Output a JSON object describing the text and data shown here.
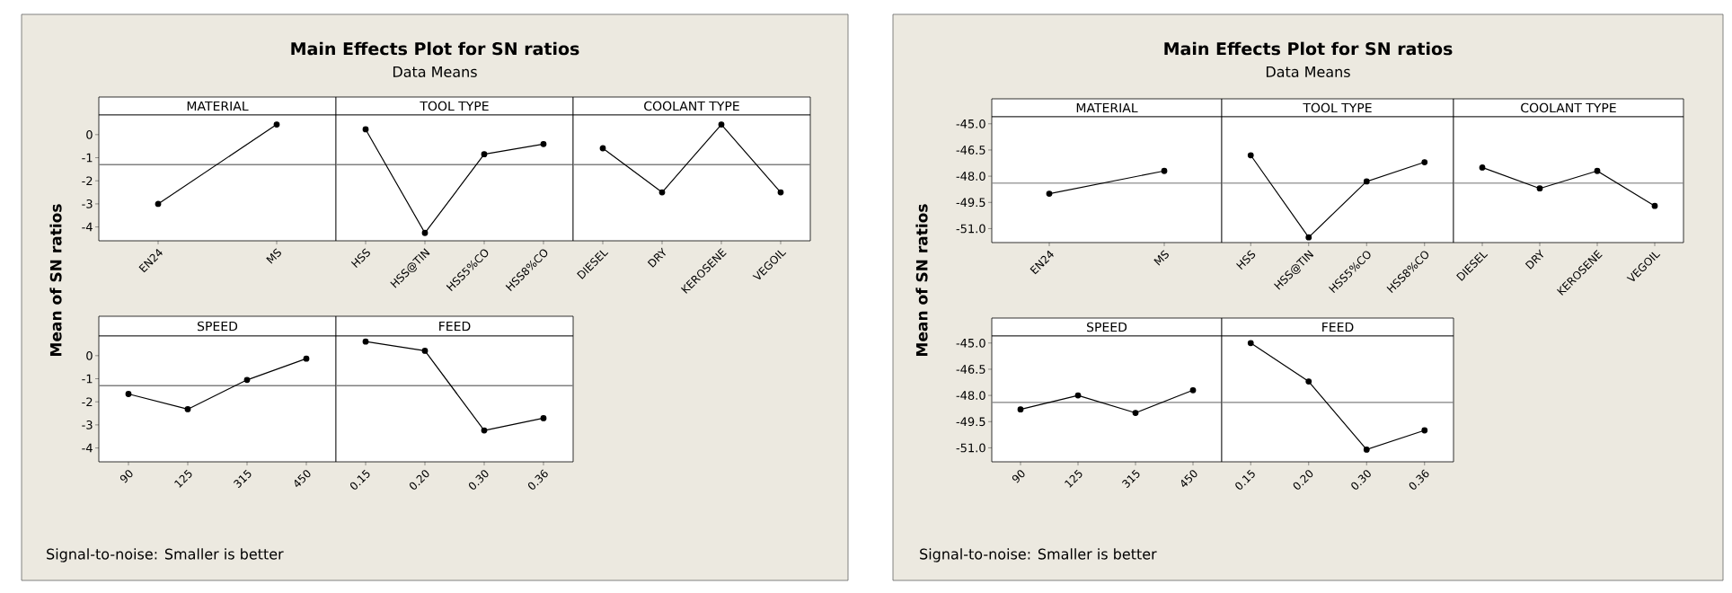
{
  "chart_data": [
    {
      "type": "line",
      "title": "MATERIAL",
      "ylabel": "Mean of SN ratios",
      "annotations": [
        "Main Effects Plot for SN ratios",
        "Data Means",
        "Signal-to-noise: Smaller is better"
      ],
      "categories": [
        "EN24",
        "MS"
      ],
      "values": [
        -3.0,
        0.44
      ],
      "color": "#000000",
      "marker": "circle",
      "ylim": [
        -4.6,
        0.85
      ],
      "yticks": [
        0,
        -1,
        -2,
        -3,
        -4
      ],
      "ref_lines": [
        {
          "axis": "y",
          "value": -1.3,
          "color": "#808080"
        }
      ]
    },
    {
      "type": "line",
      "title": "TOOL TYPE",
      "categories": [
        "HSS",
        "HSS@TIN",
        "HSS5%CO",
        "HSS8%CO"
      ],
      "values": [
        0.23,
        -4.26,
        -0.85,
        -0.41
      ],
      "color": "#000000",
      "marker": "circle",
      "ylim": [
        -4.6,
        0.85
      ],
      "tick_labels": "x",
      "ref_lines": [
        {
          "axis": "y",
          "value": -1.3,
          "color": "#808080"
        }
      ]
    },
    {
      "type": "line",
      "title": "COOLANT TYPE",
      "categories": [
        "DIESEL",
        "DRY",
        "KEROSENE",
        "VEGOIL"
      ],
      "values": [
        -0.59,
        -2.5,
        0.44,
        -2.5
      ],
      "color": "#000000",
      "marker": "circle",
      "ylim": [
        -4.6,
        0.85
      ],
      "tick_labels": "x",
      "ref_lines": [
        {
          "axis": "y",
          "value": -1.3,
          "color": "#808080"
        }
      ]
    },
    {
      "type": "line",
      "title": "SPEED",
      "categories": [
        "90",
        "125",
        "315",
        "450"
      ],
      "values": [
        -1.66,
        -2.32,
        -1.05,
        -0.13
      ],
      "color": "#000000",
      "marker": "circle",
      "ylim": [
        -4.6,
        0.85
      ],
      "yticks": [
        0,
        -1,
        -2,
        -3,
        -4
      ],
      "ref_lines": [
        {
          "axis": "y",
          "value": -1.3,
          "color": "#808080"
        }
      ]
    },
    {
      "type": "line",
      "title": "FEED",
      "categories": [
        "0.15",
        "0.20",
        "0.30",
        "0.36"
      ],
      "values": [
        0.61,
        0.21,
        -3.24,
        -2.71
      ],
      "color": "#000000",
      "marker": "circle",
      "ylim": [
        -4.6,
        0.85
      ],
      "tick_labels": "x",
      "ref_lines": [
        {
          "axis": "y",
          "value": -1.3,
          "color": "#808080"
        }
      ]
    },
    {
      "type": "line",
      "title": "MATERIAL",
      "ylabel": "Mean of SN ratios",
      "annotations": [
        "Main Effects Plot for SN ratios",
        "Data Means",
        "Signal-to-noise: Smaller is better"
      ],
      "categories": [
        "EN24",
        "MS"
      ],
      "values": [
        -49.0,
        -47.7
      ],
      "color": "#000000",
      "marker": "circle",
      "ylim": [
        -51.8,
        -44.6
      ],
      "yticks": [
        {
          "value": -45,
          "label": "-45.0"
        },
        {
          "value": -46.5,
          "label": "-46.5"
        },
        {
          "value": -48,
          "label": "-48.0"
        },
        {
          "value": -49.5,
          "label": "-49.5"
        },
        {
          "value": -51,
          "label": "-51.0"
        }
      ],
      "ref_lines": [
        {
          "axis": "y",
          "value": -48.4,
          "color": "#808080"
        }
      ]
    },
    {
      "type": "line",
      "title": "TOOL TYPE",
      "categories": [
        "HSS",
        "HSS@TIN",
        "HSS5%CO",
        "HSS8%CO"
      ],
      "values": [
        -46.8,
        -51.5,
        -48.3,
        -47.2
      ],
      "color": "#000000",
      "marker": "circle",
      "ylim": [
        -51.8,
        -44.6
      ],
      "tick_labels": "x",
      "ref_lines": [
        {
          "axis": "y",
          "value": -48.4,
          "color": "#808080"
        }
      ]
    },
    {
      "type": "line",
      "title": "COOLANT TYPE",
      "categories": [
        "DIESEL",
        "DRY",
        "KEROSENE",
        "VEGOIL"
      ],
      "values": [
        -47.5,
        -48.7,
        -47.7,
        -49.7
      ],
      "color": "#000000",
      "marker": "circle",
      "ylim": [
        -51.8,
        -44.6
      ],
      "tick_labels": "x",
      "ref_lines": [
        {
          "axis": "y",
          "value": -48.4,
          "color": "#808080"
        }
      ]
    },
    {
      "type": "line",
      "title": "SPEED",
      "categories": [
        "90",
        "125",
        "315",
        "450"
      ],
      "values": [
        -48.8,
        -48.0,
        -49.0,
        -47.7
      ],
      "color": "#000000",
      "marker": "circle",
      "ylim": [
        -51.8,
        -44.6
      ],
      "yticks": [
        {
          "value": -45,
          "label": "-45.0"
        },
        {
          "value": -46.5,
          "label": "-46.5"
        },
        {
          "value": -48,
          "label": "-48.0"
        },
        {
          "value": -49.5,
          "label": "-49.5"
        },
        {
          "value": -51,
          "label": "-51.0"
        }
      ],
      "ref_lines": [
        {
          "axis": "y",
          "value": -48.4,
          "color": "#808080"
        }
      ]
    },
    {
      "type": "line",
      "title": "FEED",
      "categories": [
        "0.15",
        "0.20",
        "0.30",
        "0.36"
      ],
      "values": [
        -45.0,
        -47.2,
        -51.1,
        -50.0
      ],
      "color": "#000000",
      "marker": "circle",
      "ylim": [
        -51.8,
        -44.6
      ],
      "tick_labels": "x",
      "ref_lines": [
        {
          "axis": "y",
          "value": -48.4,
          "color": "#808080"
        }
      ]
    }
  ]
}
